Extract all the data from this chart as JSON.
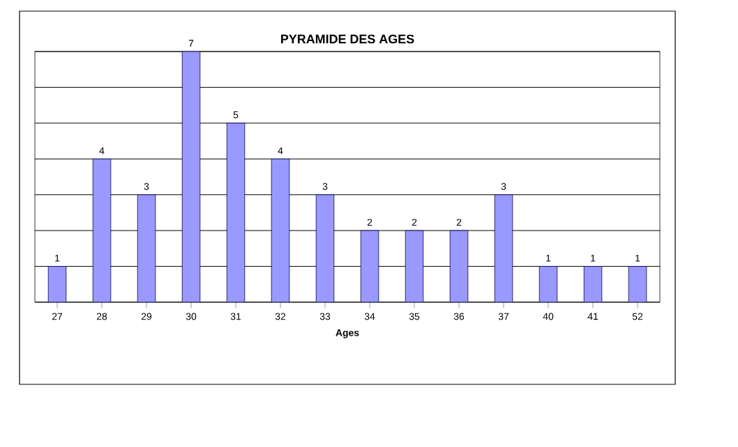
{
  "chart_data": {
    "type": "bar",
    "title": "PYRAMIDE DES AGES",
    "xlabel": "Ages",
    "categories": [
      "27",
      "28",
      "29",
      "30",
      "31",
      "32",
      "33",
      "34",
      "35",
      "36",
      "37",
      "40",
      "41",
      "52"
    ],
    "values": [
      1,
      4,
      3,
      7,
      5,
      4,
      3,
      2,
      2,
      2,
      3,
      1,
      1,
      1
    ],
    "color": "#9999ff",
    "ylim": [
      0,
      7
    ],
    "yticks": [
      {
        "value": 0,
        "label": null
      },
      {
        "value": 1,
        "label": null
      },
      {
        "value": 2,
        "label": null
      },
      {
        "value": 3,
        "label": null
      },
      {
        "value": 4,
        "label": null
      },
      {
        "value": 5,
        "label": null
      },
      {
        "value": 6,
        "label": null
      },
      {
        "value": 7,
        "label": null
      }
    ],
    "tick_labels": "x",
    "grid": "y",
    "data_labels": true
  }
}
